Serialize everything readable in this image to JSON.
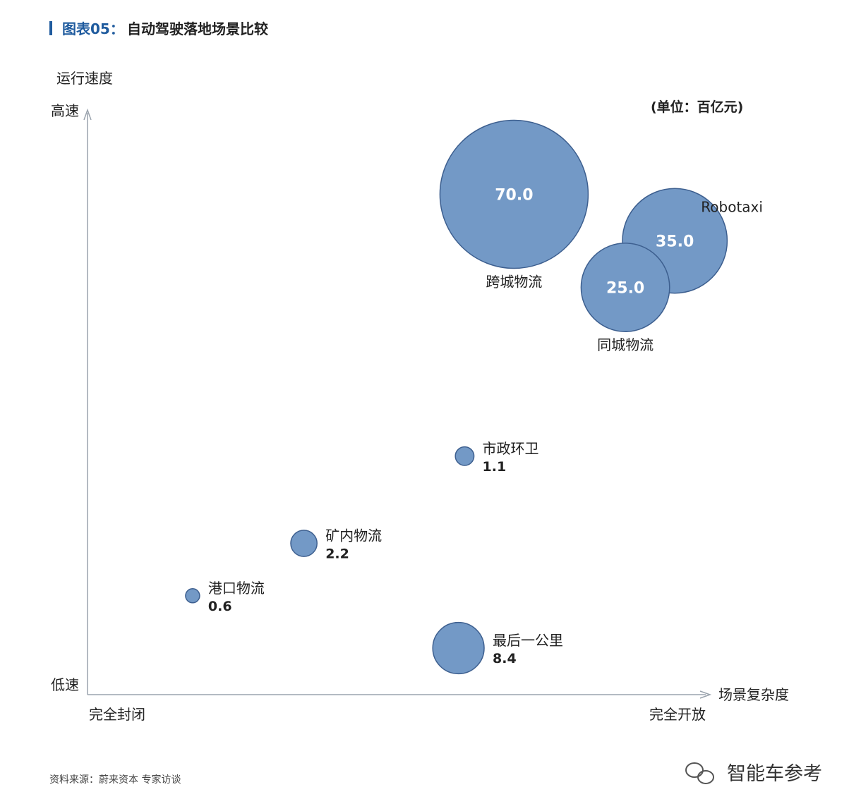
{
  "header": {
    "figure_no": "图表05：",
    "title": "自动驾驶落地场景比较"
  },
  "unit": "(单位：百亿元)",
  "source": "资料来源：蔚来资本 专家访谈",
  "brand": "智能车参考",
  "colors": {
    "accent": "#1f5b9e",
    "bubble_fill": "#7399c6",
    "bubble_stroke": "#3d5f8f",
    "axis": "#9aa3ad"
  },
  "chart_data": {
    "type": "scatter",
    "title": "自动驾驶落地场景比较",
    "xlabel": "场景复杂度",
    "ylabel": "运行速度",
    "x_axis_ends": [
      "完全封闭",
      "完全开放"
    ],
    "y_axis_ends": [
      "低速",
      "高速"
    ],
    "xlim": [
      0,
      100
    ],
    "ylim": [
      0,
      100
    ],
    "grid": false,
    "legend": "none",
    "size_unit": "百亿元",
    "points": [
      {
        "label": "跨城物流",
        "value": 70.0,
        "x": 69,
        "y": 86
      },
      {
        "label": "Robotaxi",
        "value": 35.0,
        "x": 95,
        "y": 78
      },
      {
        "label": "同城物流",
        "value": 25.0,
        "x": 87,
        "y": 70
      },
      {
        "label": "市政环卫",
        "value": 1.1,
        "x": 61,
        "y": 41
      },
      {
        "label": "矿内物流",
        "value": 2.2,
        "x": 35,
        "y": 26
      },
      {
        "label": "港口物流",
        "value": 0.6,
        "x": 17,
        "y": 17
      },
      {
        "label": "最后一公里",
        "value": 8.4,
        "x": 60,
        "y": 8
      }
    ]
  }
}
